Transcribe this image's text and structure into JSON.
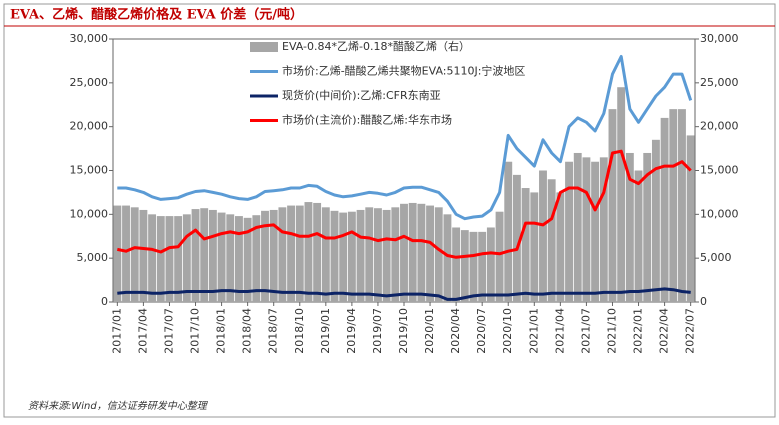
{
  "chart_data": {
    "type": "bar-line",
    "title": "EVA、乙烯、醋酸乙烯价格及 EVA 价差（元/吨）",
    "source": "资料来源:Wind，信达证券研发中心整理",
    "categories": [
      "2017/01",
      null,
      null,
      "2017/04",
      null,
      null,
      "2017/07",
      null,
      null,
      "2017/10",
      null,
      null,
      "2018/01",
      null,
      null,
      "2018/04",
      null,
      null,
      "2018/07",
      null,
      null,
      "2018/10",
      null,
      null,
      "2019/01",
      null,
      null,
      "2019/04",
      null,
      null,
      "2019/07",
      null,
      null,
      "2019/10",
      null,
      null,
      "2020/01",
      null,
      null,
      "2020/04",
      null,
      null,
      "2020/07",
      null,
      null,
      "2020/10",
      null,
      null,
      "2021/01",
      null,
      null,
      "2021/04",
      null,
      null,
      "2021/07",
      null,
      null,
      "2021/10",
      null,
      null,
      "2022/01",
      null,
      null,
      "2022/04",
      null,
      null,
      "2022/07"
    ],
    "ylim": [
      0,
      30000
    ],
    "yticks": [
      0,
      {
        "value": 5000,
        "label": "5,000"
      },
      {
        "value": 10000,
        "label": "10,000"
      },
      {
        "value": 15000,
        "label": "15,000"
      },
      {
        "value": 20000,
        "label": "20,000"
      },
      {
        "value": 25000,
        "label": "25,000"
      },
      {
        "value": 30000,
        "label": "30,000"
      }
    ],
    "y2lim": [
      0,
      30000
    ],
    "y2ticks": [
      0,
      {
        "value": 5000,
        "label": "5,000"
      },
      {
        "value": 10000,
        "label": "10,000"
      },
      {
        "value": 15000,
        "label": "15,000"
      },
      {
        "value": 20000,
        "label": "20,000"
      },
      {
        "value": 25000,
        "label": "25,000"
      },
      {
        "value": 30000,
        "label": "30,000"
      }
    ],
    "series": [
      {
        "name": "EVA-0.84*乙烯-0.18*醋酸乙烯（右）",
        "type": "bar",
        "axis": "y2",
        "color": "#a6a6a6",
        "values": [
          11000,
          11000,
          10800,
          10500,
          10000,
          9800,
          9800,
          9800,
          10000,
          10600,
          10700,
          10500,
          10200,
          10000,
          9800,
          9600,
          9900,
          10400,
          10500,
          10800,
          11000,
          11000,
          11400,
          11300,
          10800,
          10400,
          10200,
          10300,
          10500,
          10800,
          10700,
          10500,
          10800,
          11200,
          11300,
          11200,
          11000,
          10800,
          10000,
          8500,
          8200,
          8000,
          8000,
          8500,
          10300,
          16000,
          14500,
          13000,
          12500,
          15000,
          14000,
          12500,
          16000,
          17000,
          16500,
          16000,
          16500,
          22000,
          24500,
          17000,
          15000,
          17000,
          18500,
          21000,
          22000,
          22000,
          19000
        ]
      },
      {
        "name": "市场价:乙烯-醋酸乙烯共聚物EVA:5110J:宁波地区",
        "type": "line",
        "color": "#5b9bd5",
        "values": [
          13000,
          13000,
          12800,
          12500,
          12000,
          11700,
          11800,
          11900,
          12300,
          12600,
          12700,
          12500,
          12300,
          12000,
          11800,
          11700,
          12000,
          12600,
          12700,
          12800,
          13000,
          13000,
          13300,
          13200,
          12600,
          12200,
          12000,
          12100,
          12300,
          12500,
          12400,
          12200,
          12500,
          13000,
          13100,
          13100,
          12800,
          12500,
          11500,
          10000,
          9500,
          9700,
          9800,
          10500,
          12500,
          19000,
          17500,
          16500,
          15500,
          18500,
          17000,
          16000,
          20000,
          21000,
          20500,
          19500,
          21500,
          26000,
          28000,
          22000,
          20500,
          22000,
          23500,
          24500,
          26000,
          26000,
          23000
        ]
      },
      {
        "name": "现货价(中间价):乙烯:CFR东南亚",
        "type": "line",
        "color": "#0c2366",
        "values": [
          1000,
          1100,
          1100,
          1100,
          1000,
          1000,
          1100,
          1100,
          1200,
          1200,
          1200,
          1200,
          1300,
          1300,
          1200,
          1200,
          1300,
          1300,
          1200,
          1100,
          1100,
          1100,
          1000,
          1000,
          900,
          1000,
          1000,
          900,
          900,
          900,
          800,
          700,
          800,
          900,
          900,
          900,
          800,
          700,
          300,
          300,
          500,
          700,
          800,
          800,
          800,
          800,
          900,
          1000,
          900,
          900,
          1000,
          1000,
          1000,
          1000,
          1000,
          1000,
          1100,
          1100,
          1100,
          1200,
          1200,
          1300,
          1400,
          1500,
          1400,
          1200,
          1100
        ]
      },
      {
        "name": "市场价(主流价):醋酸乙烯:华东市场",
        "type": "line",
        "color": "#ff0000",
        "values": [
          6000,
          5800,
          6200,
          6100,
          6000,
          5700,
          6200,
          6300,
          7500,
          8200,
          7200,
          7500,
          7800,
          8000,
          7800,
          8000,
          8500,
          8700,
          8800,
          8000,
          7800,
          7500,
          7500,
          7800,
          7300,
          7300,
          7600,
          8000,
          7400,
          7300,
          7000,
          7200,
          7100,
          7500,
          7000,
          7000,
          6800,
          6000,
          5300,
          5100,
          5200,
          5300,
          5500,
          5600,
          5500,
          5800,
          6000,
          9000,
          9000,
          8800,
          9500,
          12500,
          13000,
          13000,
          12500,
          10500,
          12500,
          17000,
          17200,
          14000,
          13500,
          14500,
          15200,
          15500,
          15500,
          16000,
          15000
        ]
      }
    ]
  }
}
